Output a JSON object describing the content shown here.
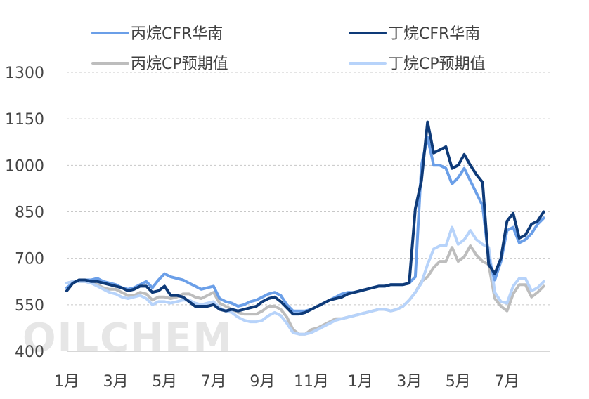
{
  "watermark": "OILCHEM",
  "legend": [
    {
      "label": "丙烷CFR华南",
      "color": "#6B9FE8"
    },
    {
      "label": "丁烷CFR华南",
      "color": "#0E3A78"
    },
    {
      "label": "丙烷CP预期值",
      "color": "#BDBDBD"
    },
    {
      "label": "丁烷CP预期值",
      "color": "#B7D3FA"
    }
  ],
  "chart_data": {
    "type": "line",
    "ylim": [
      400,
      1300
    ],
    "y_ticks": [
      400,
      550,
      700,
      850,
      1000,
      1150,
      1300
    ],
    "x_tick_labels": [
      "1月",
      "3月",
      "5月",
      "7月",
      "9月",
      "11月",
      "1月",
      "3月",
      "5月",
      "7月"
    ],
    "x_tick_index": [
      0,
      8,
      16,
      24,
      32,
      40,
      48,
      56,
      64,
      72
    ],
    "grid": true,
    "legend_position": "top",
    "n_points": 79,
    "series": [
      {
        "name": "丙烷CFR华南",
        "color": "#6B9FE8",
        "values": [
          605,
          620,
          630,
          630,
          630,
          635,
          625,
          620,
          615,
          605,
          600,
          605,
          615,
          625,
          605,
          630,
          650,
          640,
          635,
          630,
          620,
          610,
          600,
          605,
          610,
          570,
          560,
          555,
          545,
          550,
          560,
          565,
          575,
          585,
          590,
          580,
          550,
          530,
          530,
          530,
          535,
          545,
          555,
          565,
          575,
          585,
          590,
          590,
          595,
          600,
          605,
          610,
          610,
          615,
          615,
          615,
          620,
          640,
          1000,
          1090,
          1000,
          1000,
          990,
          940,
          960,
          990,
          950,
          910,
          870,
          700,
          630,
          690,
          790,
          800,
          750,
          760,
          780,
          810,
          830
        ]
      },
      {
        "name": "丁烷CFR华南",
        "color": "#0E3A78",
        "values": [
          595,
          620,
          630,
          630,
          625,
          625,
          620,
          615,
          610,
          605,
          595,
          600,
          610,
          610,
          590,
          595,
          610,
          580,
          580,
          575,
          560,
          545,
          545,
          545,
          550,
          535,
          530,
          535,
          530,
          535,
          540,
          545,
          560,
          570,
          575,
          560,
          540,
          520,
          520,
          525,
          535,
          545,
          555,
          565,
          570,
          575,
          585,
          590,
          595,
          600,
          605,
          610,
          610,
          615,
          615,
          615,
          620,
          860,
          950,
          1140,
          1040,
          1050,
          1060,
          990,
          1000,
          1035,
          1000,
          970,
          945,
          680,
          650,
          700,
          820,
          845,
          765,
          775,
          810,
          820,
          850
        ]
      },
      {
        "name": "丙烷CP预期值",
        "color": "#BDBDBD",
        "values": [
          620,
          625,
          625,
          625,
          620,
          615,
          605,
          600,
          600,
          590,
          580,
          580,
          590,
          585,
          565,
          575,
          575,
          570,
          575,
          585,
          585,
          575,
          570,
          580,
          590,
          555,
          545,
          535,
          525,
          520,
          520,
          520,
          530,
          545,
          545,
          535,
          510,
          470,
          455,
          455,
          470,
          475,
          485,
          495,
          505,
          505,
          510,
          515,
          520,
          525,
          530,
          535,
          535,
          530,
          535,
          545,
          565,
          590,
          625,
          640,
          670,
          690,
          690,
          735,
          690,
          705,
          740,
          710,
          690,
          680,
          570,
          545,
          530,
          585,
          615,
          615,
          575,
          590,
          610
        ]
      },
      {
        "name": "丁烷CP预期值",
        "color": "#B7D3FA",
        "values": [
          620,
          625,
          625,
          625,
          620,
          610,
          600,
          590,
          585,
          575,
          570,
          575,
          580,
          570,
          550,
          560,
          560,
          555,
          560,
          565,
          565,
          555,
          550,
          555,
          560,
          540,
          530,
          525,
          510,
          500,
          495,
          495,
          500,
          515,
          525,
          515,
          490,
          460,
          455,
          455,
          460,
          470,
          480,
          490,
          500,
          505,
          510,
          515,
          520,
          525,
          530,
          535,
          535,
          530,
          535,
          545,
          565,
          590,
          620,
          680,
          730,
          740,
          740,
          800,
          745,
          760,
          790,
          760,
          745,
          735,
          590,
          560,
          555,
          610,
          635,
          635,
          595,
          605,
          625
        ]
      }
    ]
  }
}
